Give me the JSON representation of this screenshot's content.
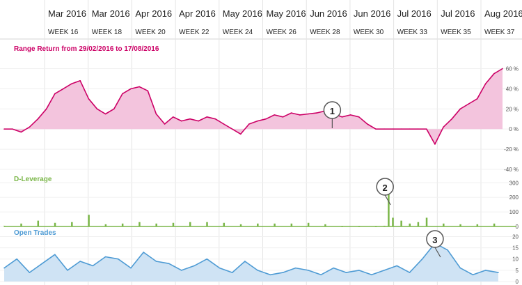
{
  "header": {
    "months": [
      "Mar 2016",
      "Mar 2016",
      "Apr 2016",
      "Apr 2016",
      "May 2016",
      "May 2016",
      "Jun 2016",
      "Jun 2016",
      "Jul 2016",
      "Jul 2016",
      "Aug 2016"
    ],
    "weeks": [
      "WEEK 16",
      "WEEK 18",
      "WEEK 20",
      "WEEK 22",
      "WEEK 24",
      "WEEK 26",
      "WEEK 28",
      "WEEK 30",
      "WEEK 33",
      "WEEK 35",
      "WEEK 37"
    ]
  },
  "colors": {
    "range": "#cc0066",
    "range_fill": "#f3c4dd",
    "leverage": "#7ab648",
    "leverage_fill": "#d9ebc6",
    "trades": "#4e9bd4",
    "trades_fill": "#cfe3f4",
    "marker": "#f4955a"
  },
  "markers": [
    {
      "label": "1",
      "x_index": 79
    },
    {
      "label": "2",
      "x_index": 91
    },
    {
      "label": "3",
      "x_index": 102
    }
  ],
  "chart_data": [
    {
      "type": "line",
      "title": "Range Return from 29/02/2016 to 17/08/2016",
      "y_unit": "%",
      "yticks": [
        60,
        40,
        20,
        0,
        -20,
        -40
      ],
      "ylim": [
        -40,
        70
      ],
      "x_index": [
        0,
        2,
        4,
        6,
        8,
        10,
        12,
        14,
        16,
        18,
        20,
        22,
        24,
        26,
        28,
        30,
        32,
        34,
        36,
        38,
        40,
        42,
        44,
        46,
        48,
        50,
        52,
        54,
        56,
        58,
        60,
        62,
        64,
        66,
        68,
        70,
        72,
        74,
        76,
        78,
        80,
        82,
        84,
        86,
        88,
        90,
        92,
        94,
        96,
        98,
        100,
        102,
        104,
        106,
        108,
        110,
        112,
        114,
        116,
        118
      ],
      "values": [
        0,
        0,
        -3,
        2,
        10,
        20,
        35,
        40,
        45,
        48,
        30,
        20,
        15,
        20,
        35,
        40,
        42,
        38,
        15,
        5,
        12,
        8,
        10,
        8,
        12,
        10,
        5,
        0,
        -5,
        5,
        8,
        10,
        14,
        12,
        16,
        14,
        15,
        16,
        18,
        15,
        12,
        14,
        12,
        5,
        0,
        0,
        0,
        0,
        0,
        0,
        0,
        -15,
        2,
        10,
        20,
        25,
        30,
        45,
        55,
        60
      ]
    },
    {
      "type": "bar",
      "title": "D-Leverage",
      "yticks": [
        300,
        200,
        100,
        0
      ],
      "ylim": [
        0,
        330
      ],
      "x_index": [
        0,
        4,
        8,
        12,
        16,
        20,
        24,
        28,
        32,
        36,
        40,
        44,
        48,
        52,
        56,
        60,
        64,
        68,
        72,
        76,
        80,
        84,
        88,
        90,
        91,
        92,
        94,
        96,
        98,
        100,
        104,
        108,
        112,
        116
      ],
      "values": [
        5,
        20,
        40,
        25,
        30,
        80,
        15,
        20,
        30,
        20,
        25,
        30,
        30,
        25,
        15,
        20,
        20,
        20,
        25,
        15,
        0,
        0,
        0,
        5,
        280,
        60,
        40,
        20,
        30,
        60,
        20,
        15,
        15,
        20
      ]
    },
    {
      "type": "area",
      "title": "Open Trades",
      "yticks": [
        20,
        15,
        10,
        5,
        0
      ],
      "ylim": [
        0,
        22
      ],
      "x_index": [
        0,
        3,
        6,
        9,
        12,
        15,
        18,
        21,
        24,
        27,
        30,
        33,
        36,
        39,
        42,
        45,
        48,
        51,
        54,
        57,
        60,
        63,
        66,
        69,
        72,
        75,
        78,
        81,
        84,
        87,
        90,
        93,
        96,
        99,
        102,
        105,
        108,
        111,
        114,
        117
      ],
      "values": [
        6,
        10,
        4,
        8,
        12,
        5,
        9,
        7,
        11,
        10,
        6,
        13,
        9,
        8,
        5,
        7,
        10,
        6,
        4,
        9,
        5,
        3,
        4,
        6,
        5,
        3,
        6,
        4,
        5,
        3,
        5,
        7,
        4,
        10,
        17,
        14,
        6,
        3,
        5,
        4
      ]
    }
  ]
}
